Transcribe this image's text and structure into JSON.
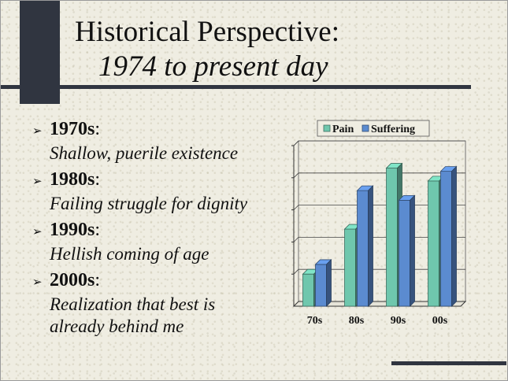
{
  "slide": {
    "title_line1": "Historical Perspective:",
    "title_line2": "1974 to present day"
  },
  "bullets": [
    {
      "year": "1970s",
      "suffix": ":",
      "desc": "Shallow, puerile existence"
    },
    {
      "year": "1980s",
      "suffix": ":",
      "desc": "Failing struggle for dignity"
    },
    {
      "year": "1990s",
      "suffix": ":",
      "desc": "Hellish coming of age"
    },
    {
      "year": "2000s",
      "suffix": ":",
      "desc": "Realization that best is already behind me"
    }
  ],
  "bullet_glyph": "➢",
  "chart_data": {
    "type": "bar",
    "categories": [
      "70s",
      "80s",
      "90s",
      "00s"
    ],
    "series": [
      {
        "name": "Pain",
        "values": [
          1.0,
          2.4,
          4.3,
          3.9
        ],
        "color": "#6fc7ad"
      },
      {
        "name": "Suffering",
        "values": [
          1.3,
          3.6,
          3.3,
          4.2
        ],
        "color": "#5b8bd0"
      }
    ],
    "title": "",
    "xlabel": "",
    "ylabel": "",
    "ylim": [
      0,
      5
    ],
    "grid": true,
    "legend": "top",
    "style": "3d"
  },
  "colors": {
    "background": "#efede2",
    "accent_dark": "#303540"
  }
}
